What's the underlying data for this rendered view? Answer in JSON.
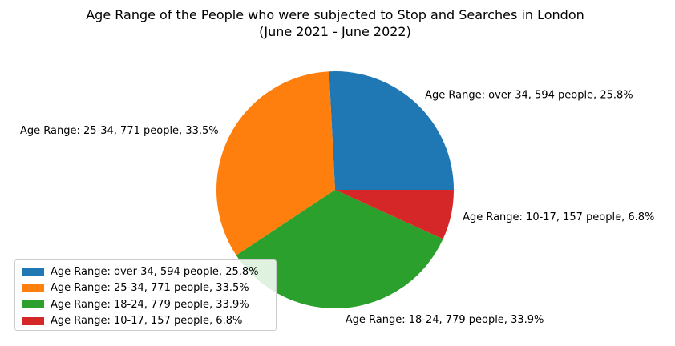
{
  "chart_data": {
    "type": "pie",
    "title_line1": "Age Range of the People who were subjected to Stop and Searches in London",
    "title_line2": "(June 2021 - June 2022)",
    "slices": [
      {
        "label": "Age Range: over 34, 594 people, 25.8%",
        "value": 594,
        "percent": 25.8,
        "color": "#1f77b4"
      },
      {
        "label": "Age Range: 25-34, 771 people, 33.5%",
        "value": 771,
        "percent": 33.5,
        "color": "#ff7f0e"
      },
      {
        "label": "Age Range: 18-24, 779 people, 33.9%",
        "value": 779,
        "percent": 33.9,
        "color": "#2ca02c"
      },
      {
        "label": "Age Range: 10-17, 157 people, 6.8%",
        "value": 157,
        "percent": 6.8,
        "color": "#d62728"
      }
    ],
    "legend": {
      "placement": "lower-left",
      "entries": [
        "Age Range: over 34, 594 people, 25.8%",
        "Age Range: 25-34, 771 people, 33.5%",
        "Age Range: 18-24, 779 people, 33.9%",
        "Age Range: 10-17, 157 people, 6.8%"
      ]
    }
  }
}
